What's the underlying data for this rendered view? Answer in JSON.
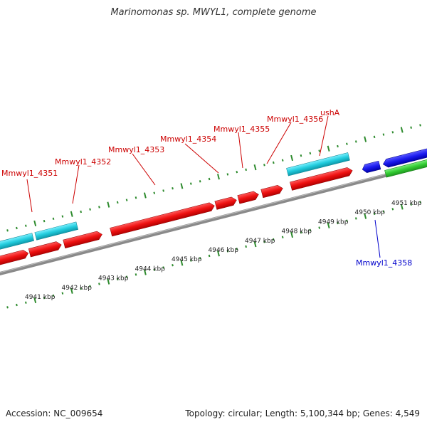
{
  "title": "Marinomonas sp. MWYL1, complete genome",
  "footer": {
    "accession": "Accession: NC_009654",
    "summary": "Topology: circular; Length: 5,100,344 bp; Genes: 4,549"
  },
  "colors": {
    "backbone": "#888888",
    "tick": "#2e8b2e",
    "label_red": "#cc0000",
    "label_blue": "#0000cc",
    "cds_red": "#ee1111",
    "cds_cyan": "#22ccdd",
    "cds_blue": "#1a1aee",
    "cds_green": "#33cc33"
  },
  "scale_labels": [
    "4941 kbp",
    "4942 kbp",
    "4943 kbp",
    "4944 kbp",
    "4945 kbp",
    "4946 kbp",
    "4947 kbp",
    "4948 kbp",
    "4949 kbp",
    "4950 kbp",
    "4951 kbp"
  ],
  "gene_labels": [
    {
      "text": "Mmwyl1_4351",
      "color": "red"
    },
    {
      "text": "Mmwyl1_4352",
      "color": "red"
    },
    {
      "text": "Mmwyl1_4353",
      "color": "red"
    },
    {
      "text": "Mmwyl1_4354",
      "color": "red"
    },
    {
      "text": "Mmwyl1_4355",
      "color": "red"
    },
    {
      "text": "Mmwyl1_4356",
      "color": "red"
    },
    {
      "text": "ushA",
      "color": "red"
    },
    {
      "text": "Mmwyl1_4358",
      "color": "blue"
    }
  ]
}
